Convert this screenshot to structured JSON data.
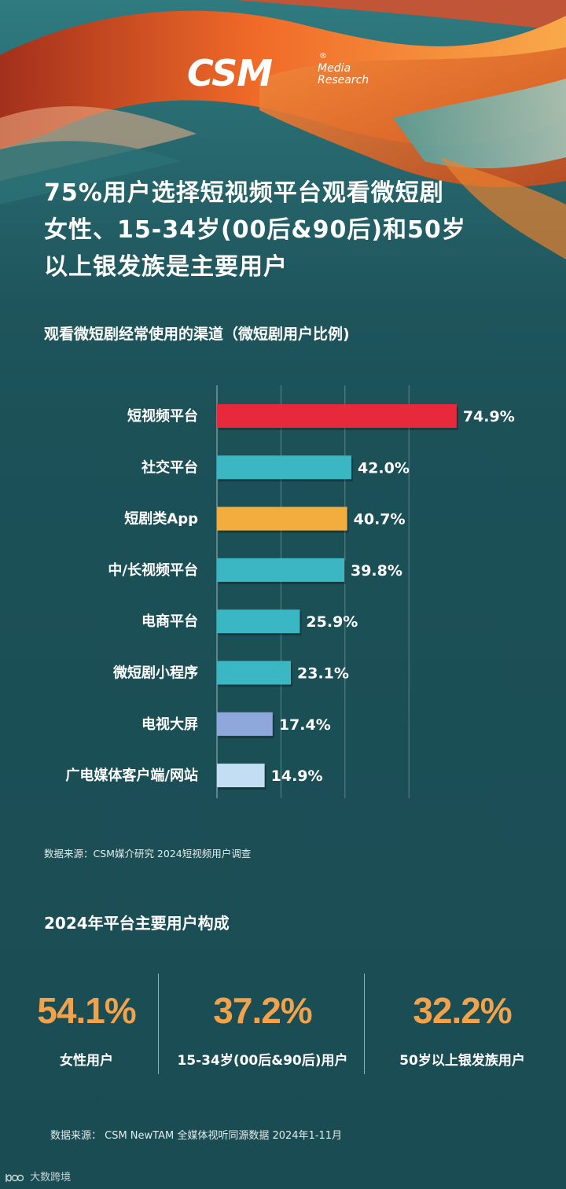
{
  "brand": {
    "logo_main": "CSM",
    "logo_sub_line1": "Media",
    "logo_sub_line2": "Research",
    "logo_mark": "®"
  },
  "headline": {
    "line1": "75%用户选择短视频平台观看微短剧",
    "line2": "女性、15-34岁(00后&90后)和50岁",
    "line3": "以上银发族是主要用户"
  },
  "chart_data": {
    "type": "bar",
    "orientation": "horizontal",
    "title": "观看微短剧经常使用的渠道（微短剧用户比例)",
    "categories": [
      "短视频平台",
      "社交平台",
      "短剧类App",
      "中/长视频平台",
      "电商平台",
      "微短剧小程序",
      "电视大屏",
      "广电媒体客户端/网站"
    ],
    "values": [
      74.9,
      42.0,
      40.7,
      39.8,
      25.9,
      23.1,
      17.4,
      14.9
    ],
    "value_labels": [
      "74.9%",
      "42.0%",
      "40.7%",
      "39.8%",
      "25.9%",
      "23.1%",
      "17.4%",
      "14.9%"
    ],
    "colors": [
      "#e8293b",
      "#3bb7c4",
      "#f2ad3d",
      "#3bb7c4",
      "#3bb7c4",
      "#3bb7c4",
      "#8fa8dc",
      "#c3ddf2"
    ],
    "xlim": [
      0,
      80
    ],
    "grid": true,
    "unit": "%"
  },
  "source1": "数据来源：CSM媒介研究 2024短视频用户调查",
  "section2": {
    "title": "2024年平台主要用户构成",
    "stats": [
      {
        "value": "54.1%",
        "label": "女性用户"
      },
      {
        "value": "37.2%",
        "label": "15-34岁(00后&90后)用户"
      },
      {
        "value": "32.2%",
        "label": "50岁以上银发族用户"
      }
    ]
  },
  "source2": "数据来源： CSM NewTAM 全媒体视听同源数据 2024年1-11月",
  "watermark": "大数跨境"
}
